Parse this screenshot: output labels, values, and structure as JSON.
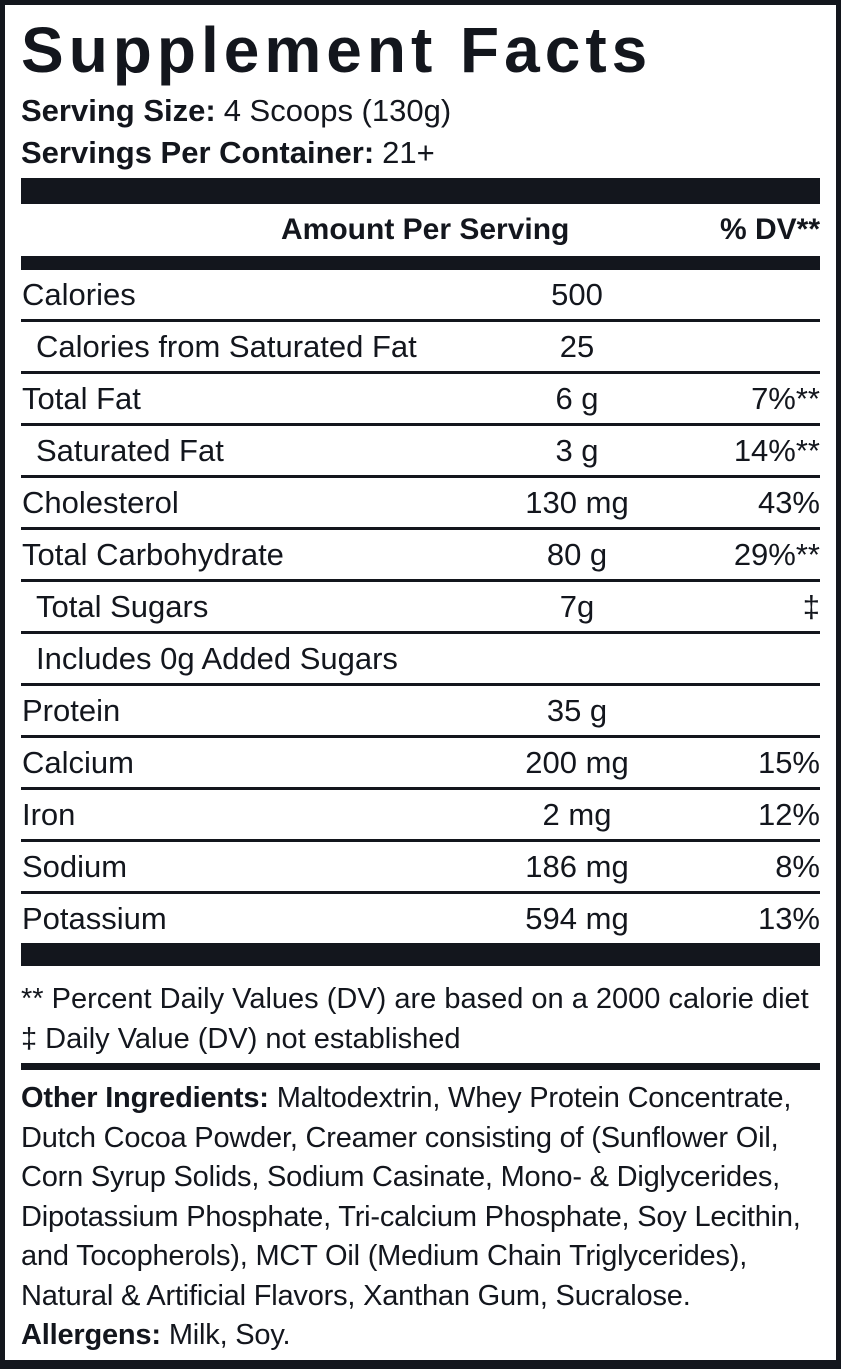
{
  "title": "Supplement Facts",
  "serving": {
    "size_label": "Serving Size:",
    "size_value": "4 Scoops (130g)",
    "per_container_label": "Servings Per Container:",
    "per_container_value": "21+"
  },
  "table": {
    "header": {
      "amount": "Amount Per Serving",
      "dv": "% DV**"
    },
    "rows": [
      {
        "name": "Calories",
        "amount": "500",
        "dv": "",
        "indent": false
      },
      {
        "name": "Calories from Saturated Fat",
        "amount": "25",
        "dv": "",
        "indent": true
      },
      {
        "name": "Total Fat",
        "amount": "6 g",
        "dv": "7%**",
        "indent": false
      },
      {
        "name": "Saturated Fat",
        "amount": "3 g",
        "dv": "14%**",
        "indent": true
      },
      {
        "name": "Cholesterol",
        "amount": "130 mg",
        "dv": "43%",
        "indent": false
      },
      {
        "name": "Total Carbohydrate",
        "amount": "80 g",
        "dv": "29%**",
        "indent": false
      },
      {
        "name": "Total Sugars",
        "amount": "7g",
        "dv": "‡",
        "indent": true
      },
      {
        "name": "Includes 0g Added Sugars",
        "amount": "",
        "dv": "",
        "indent": true
      },
      {
        "name": "Protein",
        "amount": "35 g",
        "dv": "",
        "indent": false
      },
      {
        "name": "Calcium",
        "amount": "200 mg",
        "dv": "15%",
        "indent": false
      },
      {
        "name": "Iron",
        "amount": "2 mg",
        "dv": "12%",
        "indent": false
      },
      {
        "name": "Sodium",
        "amount": "186 mg",
        "dv": "8%",
        "indent": false
      },
      {
        "name": "Potassium",
        "amount": "594 mg",
        "dv": "13%",
        "indent": false
      }
    ]
  },
  "footnotes": [
    "** Percent Daily Values (DV) are based on a 2000 calorie diet",
    "‡ Daily Value (DV) not established"
  ],
  "other_ingredients": {
    "label": "Other Ingredients:",
    "lines": [
      "Maltodextrin, Whey Protein Concentrate,",
      "Dutch Cocoa Powder, Creamer consisting of (Sunflower Oil,",
      "Corn Syrup Solids, Sodium Casinate, Mono- & Diglycerides,",
      "Dipotassium Phosphate, Tri-calcium Phosphate, Soy Lecithin,",
      "and Tocopherols), MCT Oil (Medium Chain Triglycerides),",
      "Natural & Artificial Flavors, Xanthan Gum, Sucralose."
    ]
  },
  "allergens": {
    "label": "Allergens:",
    "text": "Milk, Soy."
  },
  "colors": {
    "ink": "#13161d",
    "background": "#ffffff"
  }
}
